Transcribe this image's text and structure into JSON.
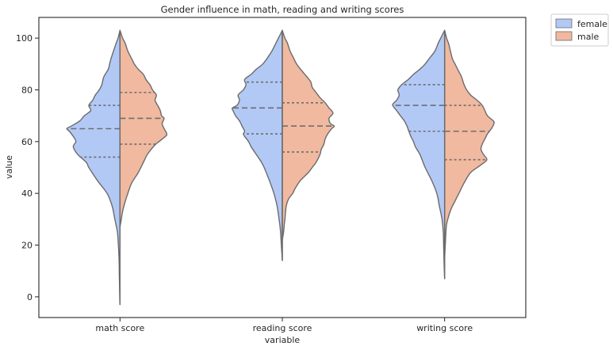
{
  "chart_data": {
    "type": "violin",
    "title": "Gender influence in math, reading and writing scores",
    "xlabel": "variable",
    "ylabel": "value",
    "ylim": [
      -8,
      108
    ],
    "yticks": [
      0,
      20,
      40,
      60,
      80,
      100
    ],
    "categories": [
      "math score",
      "reading score",
      "writing score"
    ],
    "split": true,
    "inner": "quartile",
    "legend": {
      "position": "outside-top-right",
      "entries": [
        {
          "label": "female",
          "color": "#b2c9f6"
        },
        {
          "label": "male",
          "color": "#f0b9a0"
        }
      ]
    },
    "series": [
      {
        "name": "female",
        "side": "left",
        "color": "#b2c9f6",
        "violins": [
          {
            "category": "math score",
            "quartiles": [
              54,
              65,
              74
            ],
            "profile": [
              [
                -3,
                0.1
              ],
              [
                0,
                0.4
              ],
              [
                5,
                0.8
              ],
              [
                10,
                1.2
              ],
              [
                15,
                1.5
              ],
              [
                20,
                2.5
              ],
              [
                25,
                4
              ],
              [
                30,
                8
              ],
              [
                35,
                12
              ],
              [
                40,
                20
              ],
              [
                45,
                35
              ],
              [
                50,
                48
              ],
              [
                52,
                52
              ],
              [
                55,
                65
              ],
              [
                58,
                72
              ],
              [
                60,
                68
              ],
              [
                62,
                72
              ],
              [
                64,
                78
              ],
              [
                65,
                82
              ],
              [
                66,
                75
              ],
              [
                68,
                62
              ],
              [
                70,
                55
              ],
              [
                72,
                45
              ],
              [
                74,
                48
              ],
              [
                76,
                42
              ],
              [
                78,
                38
              ],
              [
                80,
                32
              ],
              [
                82,
                28
              ],
              [
                85,
                25
              ],
              [
                88,
                18
              ],
              [
                90,
                16
              ],
              [
                92,
                14
              ],
              [
                95,
                10
              ],
              [
                98,
                6
              ],
              [
                100,
                3
              ],
              [
                103,
                0
              ]
            ]
          },
          {
            "category": "reading score",
            "quartiles": [
              63,
              73,
              83
            ],
            "profile": [
              [
                14,
                0
              ],
              [
                18,
                1
              ],
              [
                22,
                2
              ],
              [
                26,
                3
              ],
              [
                30,
                5
              ],
              [
                35,
                8
              ],
              [
                40,
                13
              ],
              [
                45,
                20
              ],
              [
                50,
                28
              ],
              [
                52,
                32
              ],
              [
                55,
                40
              ],
              [
                58,
                48
              ],
              [
                60,
                52
              ],
              [
                62,
                58
              ],
              [
                63,
                60
              ],
              [
                64,
                58
              ],
              [
                66,
                62
              ],
              [
                68,
                66
              ],
              [
                70,
                72
              ],
              [
                72,
                76
              ],
              [
                73,
                77
              ],
              [
                74,
                70
              ],
              [
                76,
                66
              ],
              [
                78,
                68
              ],
              [
                80,
                60
              ],
              [
                82,
                56
              ],
              [
                84,
                58
              ],
              [
                86,
                48
              ],
              [
                88,
                40
              ],
              [
                90,
                30
              ],
              [
                92,
                24
              ],
              [
                95,
                16
              ],
              [
                98,
                10
              ],
              [
                100,
                6
              ],
              [
                103,
                0
              ]
            ]
          },
          {
            "category": "writing score",
            "quartiles": [
              64,
              74,
              82
            ],
            "profile": [
              [
                7,
                0
              ],
              [
                10,
                0.5
              ],
              [
                15,
                1
              ],
              [
                20,
                1.5
              ],
              [
                25,
                2
              ],
              [
                30,
                4
              ],
              [
                35,
                8
              ],
              [
                40,
                12
              ],
              [
                45,
                20
              ],
              [
                50,
                30
              ],
              [
                55,
                38
              ],
              [
                58,
                45
              ],
              [
                60,
                48
              ],
              [
                62,
                52
              ],
              [
                64,
                55
              ],
              [
                66,
                58
              ],
              [
                68,
                62
              ],
              [
                70,
                68
              ],
              [
                72,
                74
              ],
              [
                74,
                80
              ],
              [
                75,
                78
              ],
              [
                76,
                74
              ],
              [
                78,
                70
              ],
              [
                80,
                72
              ],
              [
                82,
                66
              ],
              [
                84,
                56
              ],
              [
                86,
                48
              ],
              [
                88,
                38
              ],
              [
                90,
                30
              ],
              [
                92,
                24
              ],
              [
                95,
                15
              ],
              [
                98,
                10
              ],
              [
                100,
                6
              ],
              [
                103,
                0
              ]
            ]
          }
        ]
      },
      {
        "name": "male",
        "side": "right",
        "color": "#f0b9a0",
        "violins": [
          {
            "category": "math score",
            "quartiles": [
              59,
              69,
              79
            ],
            "profile": [
              [
                27,
                0
              ],
              [
                30,
                2
              ],
              [
                33,
                4
              ],
              [
                36,
                7
              ],
              [
                40,
                12
              ],
              [
                44,
                18
              ],
              [
                48,
                28
              ],
              [
                52,
                36
              ],
              [
                55,
                42
              ],
              [
                57,
                48
              ],
              [
                59,
                55
              ],
              [
                60,
                60
              ],
              [
                62,
                70
              ],
              [
                63,
                72
              ],
              [
                65,
                68
              ],
              [
                67,
                65
              ],
              [
                69,
                68
              ],
              [
                70,
                64
              ],
              [
                72,
                62
              ],
              [
                74,
                58
              ],
              [
                76,
                54
              ],
              [
                78,
                56
              ],
              [
                80,
                50
              ],
              [
                82,
                46
              ],
              [
                84,
                40
              ],
              [
                86,
                36
              ],
              [
                88,
                28
              ],
              [
                90,
                22
              ],
              [
                92,
                18
              ],
              [
                95,
                12
              ],
              [
                98,
                8
              ],
              [
                100,
                4
              ],
              [
                103,
                0
              ]
            ]
          },
          {
            "category": "reading score",
            "quartiles": [
              56,
              66,
              75
            ],
            "profile": [
              [
                22,
                0
              ],
              [
                25,
                2
              ],
              [
                28,
                3
              ],
              [
                30,
                4
              ],
              [
                35,
                6
              ],
              [
                38,
                10
              ],
              [
                40,
                16
              ],
              [
                42,
                20
              ],
              [
                45,
                28
              ],
              [
                48,
                40
              ],
              [
                50,
                46
              ],
              [
                52,
                52
              ],
              [
                55,
                58
              ],
              [
                57,
                60
              ],
              [
                59,
                64
              ],
              [
                61,
                66
              ],
              [
                63,
                70
              ],
              [
                65,
                76
              ],
              [
                66,
                80
              ],
              [
                67,
                74
              ],
              [
                69,
                72
              ],
              [
                71,
                78
              ],
              [
                73,
                72
              ],
              [
                75,
                66
              ],
              [
                77,
                58
              ],
              [
                79,
                52
              ],
              [
                81,
                46
              ],
              [
                83,
                44
              ],
              [
                85,
                38
              ],
              [
                88,
                28
              ],
              [
                90,
                22
              ],
              [
                92,
                18
              ],
              [
                95,
                12
              ],
              [
                98,
                8
              ],
              [
                100,
                4
              ],
              [
                103,
                0
              ]
            ]
          },
          {
            "category": "writing score",
            "quartiles": [
              53,
              64,
              74
            ],
            "profile": [
              [
                15,
                0
              ],
              [
                20,
                1
              ],
              [
                25,
                2
              ],
              [
                28,
                3
              ],
              [
                31,
                6
              ],
              [
                34,
                10
              ],
              [
                37,
                16
              ],
              [
                40,
                22
              ],
              [
                44,
                30
              ],
              [
                48,
                40
              ],
              [
                51,
                56
              ],
              [
                53,
                65
              ],
              [
                55,
                60
              ],
              [
                57,
                56
              ],
              [
                59,
                58
              ],
              [
                61,
                62
              ],
              [
                63,
                66
              ],
              [
                65,
                72
              ],
              [
                67,
                76
              ],
              [
                68,
                75
              ],
              [
                70,
                66
              ],
              [
                72,
                62
              ],
              [
                74,
                58
              ],
              [
                76,
                50
              ],
              [
                78,
                40
              ],
              [
                80,
                34
              ],
              [
                82,
                30
              ],
              [
                85,
                26
              ],
              [
                88,
                20
              ],
              [
                90,
                16
              ],
              [
                92,
                12
              ],
              [
                95,
                9
              ],
              [
                98,
                6
              ],
              [
                100,
                3
              ],
              [
                103,
                0
              ]
            ]
          }
        ]
      }
    ]
  }
}
